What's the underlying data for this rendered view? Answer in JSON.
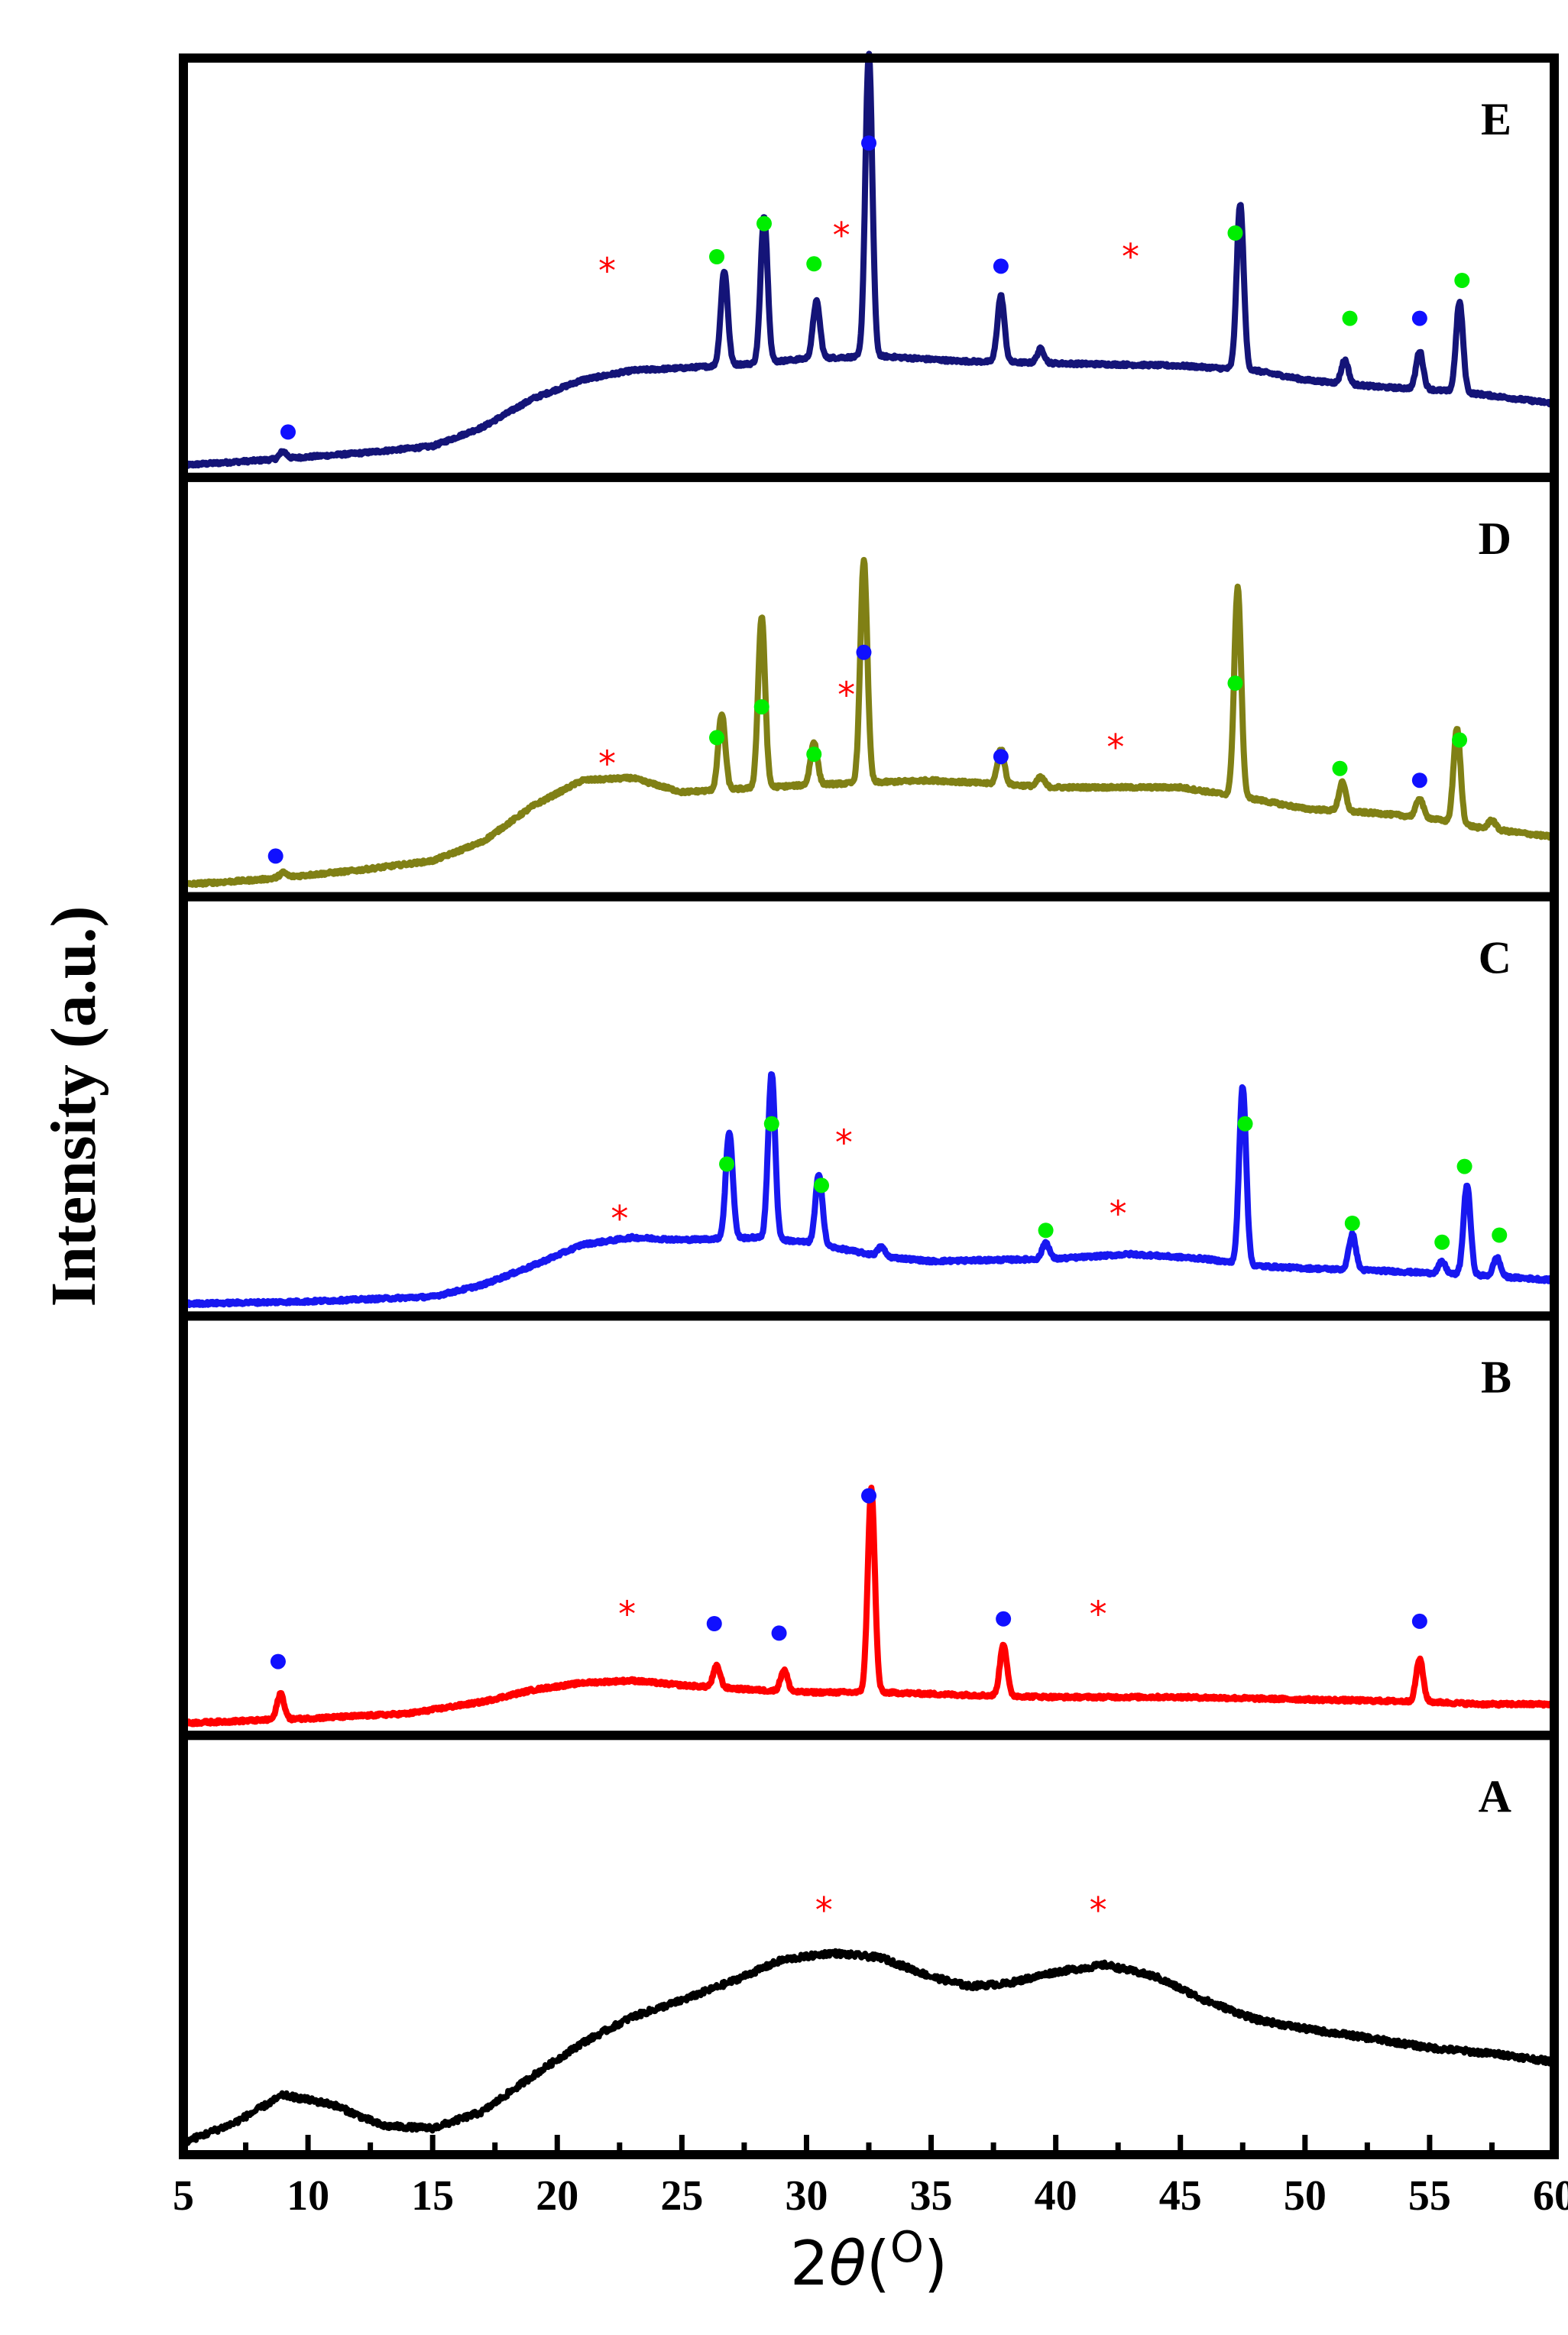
{
  "chart_data": {
    "type": "line",
    "title": "",
    "xlabel": "2θ(O)",
    "xlabel_parts": {
      "prefix": "2",
      "symbol": "θ",
      "open": "(",
      "sup": "O",
      "close": ")"
    },
    "ylabel": "Intensity (a.u.)",
    "xlim": [
      5,
      60
    ],
    "xticks": [
      5,
      10,
      15,
      20,
      25,
      30,
      35,
      40,
      45,
      50,
      55,
      60
    ],
    "grid": false,
    "legend": "none",
    "colors": {
      "amorphous_marker": "#ff0000",
      "phase_blue_marker": "#1010ff",
      "phase_green_marker": "#00ee00"
    },
    "panels": [
      {
        "label": "E",
        "color": "#141478",
        "baseline": [
          [
            5,
            0
          ],
          [
            8,
            2
          ],
          [
            12,
            5
          ],
          [
            15,
            8
          ],
          [
            17,
            16
          ],
          [
            19,
            28
          ],
          [
            21,
            36
          ],
          [
            23,
            40
          ],
          [
            25,
            41
          ],
          [
            28,
            43
          ],
          [
            30,
            45
          ],
          [
            33,
            46
          ],
          [
            36,
            44
          ],
          [
            40,
            43
          ],
          [
            45,
            42
          ],
          [
            48,
            40
          ],
          [
            50,
            36
          ],
          [
            53,
            33
          ],
          [
            55,
            32
          ],
          [
            57,
            30
          ],
          [
            60,
            26
          ]
        ],
        "peaks": [
          [
            9.0,
            3
          ],
          [
            26.7,
            40
          ],
          [
            28.3,
            62
          ],
          [
            30.4,
            24
          ],
          [
            32.5,
            128
          ],
          [
            37.8,
            28
          ],
          [
            39.4,
            6
          ],
          [
            47.4,
            70
          ],
          [
            51.6,
            10
          ],
          [
            54.6,
            16
          ],
          [
            56.2,
            38
          ]
        ],
        "blue_markers": [
          [
            9.2,
            14
          ],
          [
            32.5,
            136
          ],
          [
            37.8,
            84
          ],
          [
            54.6,
            62
          ]
        ],
        "green_markers": [
          [
            26.4,
            88
          ],
          [
            28.3,
            102
          ],
          [
            30.3,
            85
          ],
          [
            47.2,
            98
          ],
          [
            51.8,
            62
          ],
          [
            56.3,
            78
          ]
        ],
        "amorphous_markers": [
          [
            22.0,
            82
          ],
          [
            31.4,
            97
          ],
          [
            43.0,
            88
          ]
        ]
      },
      {
        "label": "D",
        "color": "#808015",
        "baseline": [
          [
            5,
            0
          ],
          [
            8,
            2
          ],
          [
            12,
            6
          ],
          [
            15,
            10
          ],
          [
            17,
            18
          ],
          [
            19,
            33
          ],
          [
            21,
            44
          ],
          [
            23,
            45
          ],
          [
            25,
            39
          ],
          [
            30,
            42
          ],
          [
            35,
            44
          ],
          [
            40,
            41
          ],
          [
            45,
            41
          ],
          [
            48,
            36
          ],
          [
            50,
            32
          ],
          [
            53,
            30
          ],
          [
            55,
            28
          ],
          [
            57,
            24
          ],
          [
            60,
            20
          ]
        ],
        "peaks": [
          [
            9.0,
            2
          ],
          [
            26.6,
            32
          ],
          [
            28.2,
            72
          ],
          [
            30.3,
            18
          ],
          [
            32.3,
            94
          ],
          [
            37.8,
            15
          ],
          [
            39.4,
            4
          ],
          [
            47.3,
            88
          ],
          [
            51.5,
            12
          ],
          [
            54.6,
            8
          ],
          [
            56.1,
            40
          ],
          [
            57.5,
            4
          ]
        ],
        "blue_markers": [
          [
            8.7,
            12
          ],
          [
            32.3,
            98
          ],
          [
            37.8,
            54
          ],
          [
            54.6,
            44
          ]
        ],
        "green_markers": [
          [
            26.4,
            62
          ],
          [
            28.2,
            75
          ],
          [
            30.3,
            55
          ],
          [
            47.2,
            85
          ],
          [
            51.4,
            49
          ],
          [
            56.2,
            61
          ]
        ],
        "amorphous_markers": [
          [
            22.0,
            51
          ],
          [
            31.6,
            80
          ],
          [
            42.4,
            58
          ]
        ]
      },
      {
        "label": "C",
        "color": "#1818f0",
        "baseline": [
          [
            5,
            0
          ],
          [
            10,
            1
          ],
          [
            15,
            3
          ],
          [
            17,
            8
          ],
          [
            19,
            16
          ],
          [
            21,
            25
          ],
          [
            23,
            28
          ],
          [
            25,
            27
          ],
          [
            28,
            28
          ],
          [
            30,
            26
          ],
          [
            33,
            20
          ],
          [
            35,
            18
          ],
          [
            40,
            19
          ],
          [
            43,
            21
          ],
          [
            46,
            19
          ],
          [
            48,
            16
          ],
          [
            50,
            15
          ],
          [
            53,
            14
          ],
          [
            55,
            13
          ],
          [
            57,
            12
          ],
          [
            60,
            10
          ]
        ],
        "peaks": [
          [
            26.9,
            45
          ],
          [
            28.6,
            70
          ],
          [
            30.5,
            30
          ],
          [
            33.0,
            4
          ],
          [
            39.6,
            7
          ],
          [
            47.5,
            75
          ],
          [
            51.9,
            15
          ],
          [
            55.5,
            5
          ],
          [
            56.5,
            38
          ],
          [
            57.7,
            8
          ]
        ],
        "blue_markers": [],
        "green_markers": [
          [
            26.8,
            59
          ],
          [
            28.6,
            76
          ],
          [
            30.6,
            50
          ],
          [
            39.6,
            31
          ],
          [
            47.6,
            76
          ],
          [
            51.9,
            34
          ],
          [
            55.5,
            26
          ],
          [
            56.4,
            58
          ],
          [
            57.8,
            29
          ]
        ],
        "amorphous_markers": [
          [
            22.5,
            36
          ],
          [
            31.5,
            68
          ],
          [
            42.5,
            38
          ]
        ]
      },
      {
        "label": "B",
        "color": "#ff0000",
        "baseline": [
          [
            5,
            0
          ],
          [
            10,
            2
          ],
          [
            14,
            4
          ],
          [
            17,
            9
          ],
          [
            19,
            14
          ],
          [
            21,
            17
          ],
          [
            23,
            18
          ],
          [
            25,
            16
          ],
          [
            28,
            14
          ],
          [
            30,
            13
          ],
          [
            33,
            13
          ],
          [
            36,
            12
          ],
          [
            40,
            11
          ],
          [
            45,
            11
          ],
          [
            50,
            10
          ],
          [
            55,
            9
          ],
          [
            57,
            8
          ],
          [
            60,
            8
          ]
        ],
        "peaks": [
          [
            8.9,
            11
          ],
          [
            26.4,
            9
          ],
          [
            29.1,
            9
          ],
          [
            32.6,
            86
          ],
          [
            37.9,
            22
          ],
          [
            54.6,
            18
          ]
        ],
        "blue_markers": [
          [
            8.8,
            26
          ],
          [
            26.3,
            42
          ],
          [
            28.9,
            38
          ],
          [
            32.5,
            96
          ],
          [
            37.9,
            44
          ],
          [
            54.6,
            43
          ]
        ],
        "green_markers": [],
        "amorphous_markers": [
          [
            22.8,
            46
          ],
          [
            41.7,
            46
          ]
        ]
      },
      {
        "label": "A",
        "color": "#000000",
        "baseline": [
          [
            5,
            0
          ],
          [
            7,
            8
          ],
          [
            9,
            20
          ],
          [
            11,
            16
          ],
          [
            13,
            7
          ],
          [
            15,
            6
          ],
          [
            17,
            13
          ],
          [
            19,
            28
          ],
          [
            21,
            42
          ],
          [
            23,
            53
          ],
          [
            25,
            60
          ],
          [
            27,
            68
          ],
          [
            29,
            77
          ],
          [
            31,
            80
          ],
          [
            33,
            78
          ],
          [
            35,
            70
          ],
          [
            36.5,
            66
          ],
          [
            38,
            67
          ],
          [
            40,
            72
          ],
          [
            42,
            75
          ],
          [
            44,
            70
          ],
          [
            46,
            60
          ],
          [
            48,
            52
          ],
          [
            50,
            48
          ],
          [
            52,
            45
          ],
          [
            55,
            40
          ],
          [
            58,
            37
          ],
          [
            60,
            34
          ]
        ],
        "peaks": [],
        "blue_markers": [],
        "green_markers": [],
        "amorphous_markers": [
          [
            30.7,
            98
          ],
          [
            41.7,
            98
          ]
        ]
      }
    ]
  }
}
